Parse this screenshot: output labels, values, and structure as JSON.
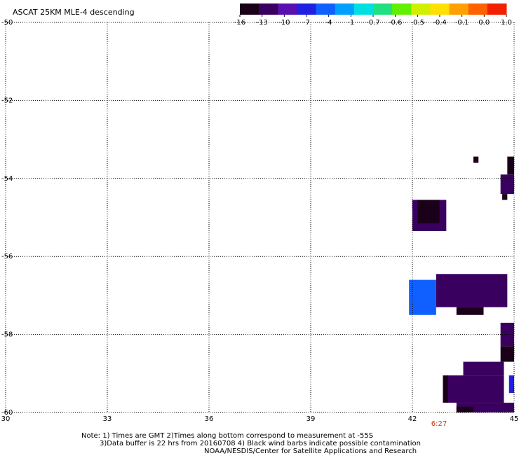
{
  "title": "ASCAT 25KM MLE-4 descending",
  "colorbar": {
    "labels": [
      "-16",
      "-13",
      "-10",
      "-7",
      "-4",
      "-1",
      "-0.7",
      "-0.6",
      "-0.5",
      "-0.4",
      "-0.1",
      "0.0",
      "1.0"
    ],
    "colors": [
      "#1a0018",
      "#3a0060",
      "#5a10b0",
      "#2020e0",
      "#1060ff",
      "#00a0ff",
      "#00e0e0",
      "#20e080",
      "#60f000",
      "#d0f000",
      "#ffe000",
      "#ffa000",
      "#ff6000",
      "#f02000"
    ]
  },
  "x_axis": {
    "ticks": [
      "30",
      "33",
      "36",
      "39",
      "42",
      "45"
    ],
    "range": [
      30,
      45
    ]
  },
  "y_axis": {
    "ticks": [
      "-50",
      "-52",
      "-54",
      "-56",
      "-58",
      "-60"
    ],
    "range": [
      -60,
      -50
    ]
  },
  "time_label": "6:27",
  "notes": [
    "Note: 1) Times are GMT 2)Times along bottom correspond to measurement at -55S",
    "3)Data buffer is 22 hrs from 20160708 4) Black wind barbs indicate possible contamination",
    "NOAA/NESDIS/Center for Satellite Applications and Research"
  ],
  "chart_data": {
    "type": "heatmap",
    "title": "ASCAT 25KM MLE-4 descending",
    "x_range": [
      30,
      45
    ],
    "y_range": [
      -60,
      -50
    ],
    "grid": true,
    "cells": [
      {
        "lon": [
          43.8,
          43.95
        ],
        "lat": [
          -53.6,
          -53.44
        ],
        "color": "#1a0018"
      },
      {
        "lon": [
          44.8,
          45.0
        ],
        "lat": [
          -53.9,
          -53.44
        ],
        "color": "#1a0018"
      },
      {
        "lon": [
          44.6,
          45.0
        ],
        "lat": [
          -54.4,
          -53.9
        ],
        "color": "#3a0060"
      },
      {
        "lon": [
          44.65,
          44.8
        ],
        "lat": [
          -54.55,
          -54.4
        ],
        "color": "#1a0018"
      },
      {
        "lon": [
          42.0,
          43.0
        ],
        "lat": [
          -55.35,
          -54.55
        ],
        "color": "#3a0060"
      },
      {
        "lon": [
          42.15,
          42.8
        ],
        "lat": [
          -55.15,
          -54.55
        ],
        "color": "#1a0018"
      },
      {
        "lon": [
          41.9,
          42.7
        ],
        "lat": [
          -57.5,
          -56.6
        ],
        "color": "#1060ff"
      },
      {
        "lon": [
          42.7,
          44.8
        ],
        "lat": [
          -57.3,
          -56.45
        ],
        "color": "#3a0060"
      },
      {
        "lon": [
          43.3,
          44.1
        ],
        "lat": [
          -57.5,
          -57.3
        ],
        "color": "#1a0018"
      },
      {
        "lon": [
          44.6,
          45.0
        ],
        "lat": [
          -58.3,
          -57.7
        ],
        "color": "#3a0060"
      },
      {
        "lon": [
          44.6,
          45.0
        ],
        "lat": [
          -58.7,
          -58.3
        ],
        "color": "#1a0018"
      },
      {
        "lon": [
          43.5,
          44.7
        ],
        "lat": [
          -59.05,
          -58.7
        ],
        "color": "#3a0060"
      },
      {
        "lon": [
          43.0,
          44.7
        ],
        "lat": [
          -59.75,
          -59.05
        ],
        "color": "#3a0060"
      },
      {
        "lon": [
          42.9,
          43.05
        ],
        "lat": [
          -59.75,
          -59.05
        ],
        "color": "#1a0018"
      },
      {
        "lon": [
          44.85,
          45.0
        ],
        "lat": [
          -59.5,
          -59.05
        ],
        "color": "#2020e0"
      },
      {
        "lon": [
          44.7,
          45.0
        ],
        "lat": [
          -60.0,
          -59.75
        ],
        "color": "#3a0060"
      },
      {
        "lon": [
          43.3,
          44.7
        ],
        "lat": [
          -60.0,
          -59.75
        ],
        "color": "#3a0060"
      },
      {
        "lon": [
          43.3,
          43.8
        ],
        "lat": [
          -60.0,
          -59.85
        ],
        "color": "#1a0018"
      }
    ]
  }
}
